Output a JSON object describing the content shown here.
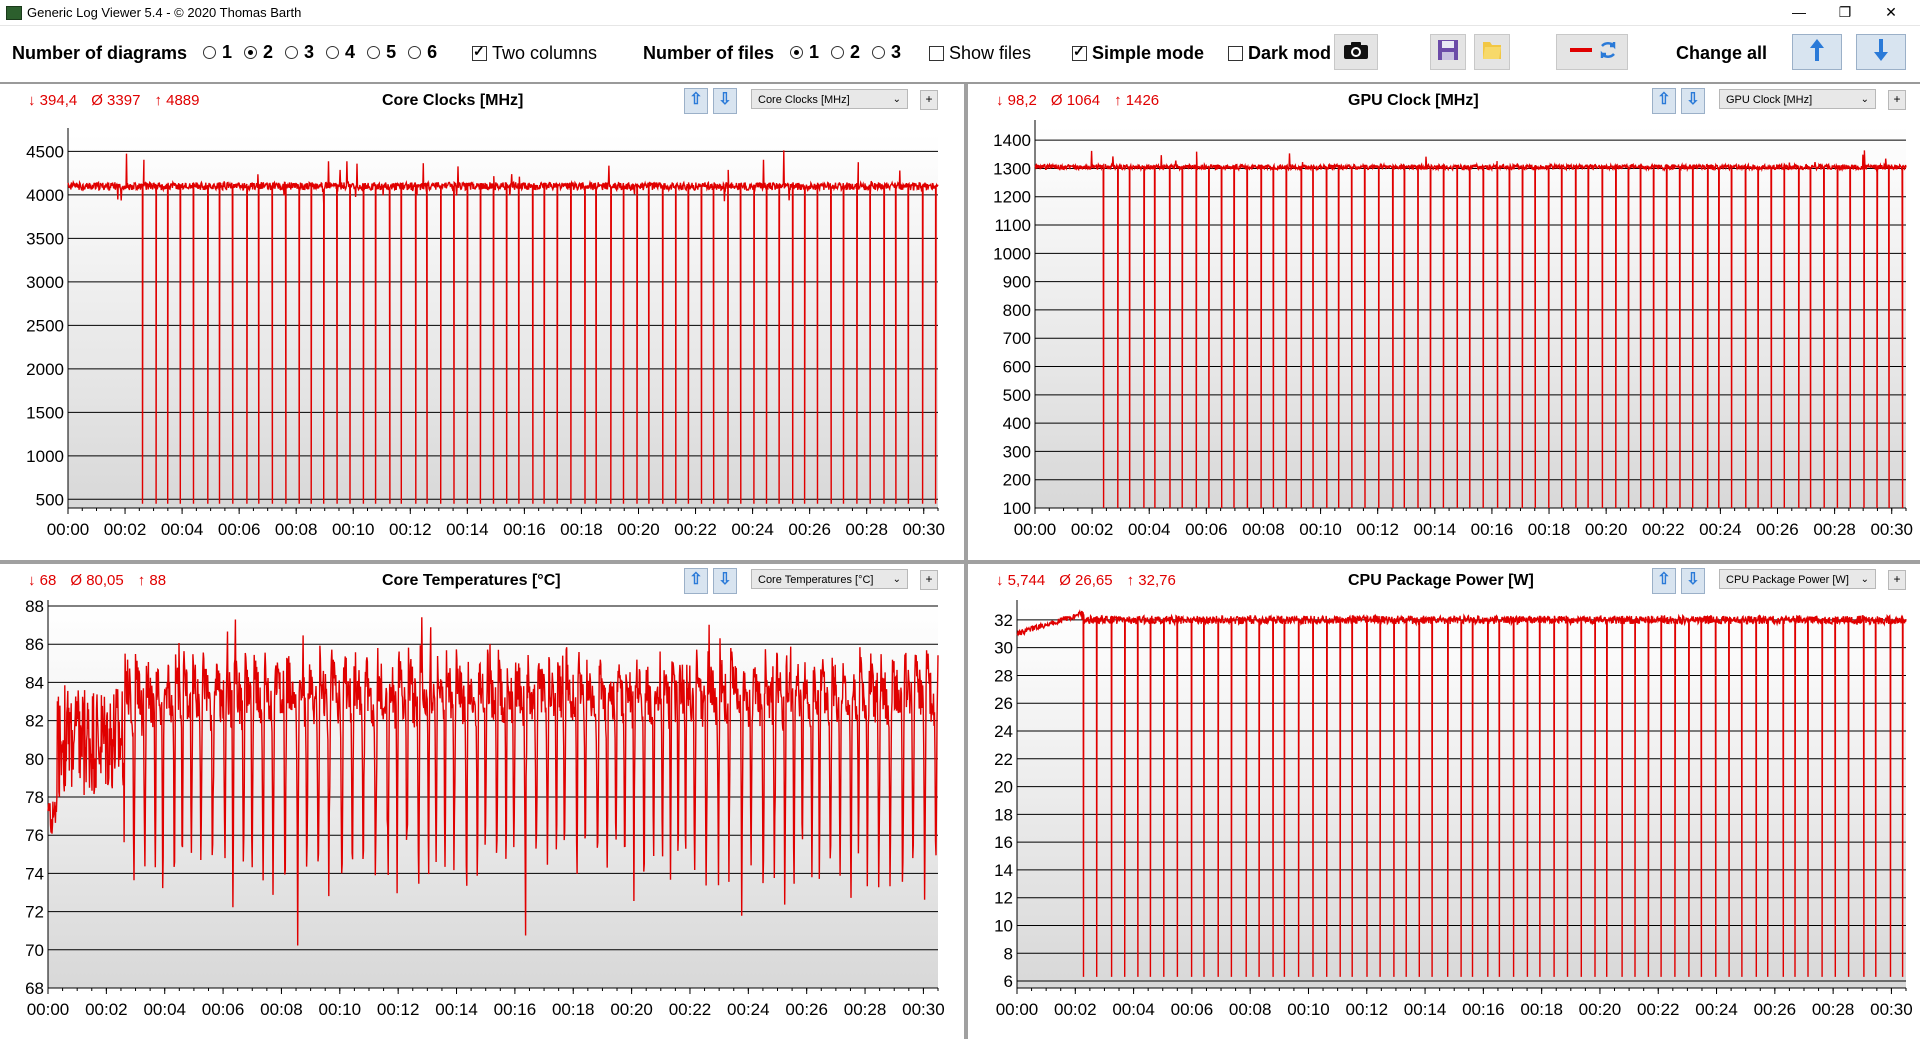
{
  "window": {
    "title": "Generic Log Viewer 5.4 - © 2020 Thomas Barth",
    "minimize": "—",
    "maximize": "❐",
    "close": "✕"
  },
  "toolbar": {
    "num_diagrams_label": "Number of diagrams",
    "diagram_options": [
      "1",
      "2",
      "3",
      "4",
      "5",
      "6"
    ],
    "diagram_selected": "2",
    "two_columns_label": "Two columns",
    "two_columns_checked": true,
    "num_files_label": "Number of files",
    "file_options": [
      "1",
      "2",
      "3"
    ],
    "file_selected": "1",
    "show_files_label": "Show files",
    "show_files_checked": false,
    "simple_mode_label": "Simple mode",
    "simple_mode_checked": true,
    "dark_mode_label": "Dark mod",
    "dark_mode_checked": false,
    "change_all_label": "Change all",
    "icons": [
      "camera-icon",
      "save-icon",
      "folder-icon",
      "swap-color-icon",
      "arrow-up-icon",
      "arrow-down-icon"
    ]
  },
  "accent_color": "#e00000",
  "panels": [
    {
      "stats": {
        "min": "↓ 394,4",
        "avg": "Ø 3397",
        "max": "↑ 4889"
      },
      "title": "Core Clocks [MHz]",
      "dropdown": "Core Clocks [MHz]",
      "plus": "+"
    },
    {
      "stats": {
        "min": "↓ 98,2",
        "avg": "Ø 1064",
        "max": "↑ 1426"
      },
      "title": "GPU Clock [MHz]",
      "dropdown": "GPU Clock [MHz]",
      "plus": "+"
    },
    {
      "stats": {
        "min": "↓ 68",
        "avg": "Ø 80,05",
        "max": "↑ 88"
      },
      "title": "Core Temperatures [°C]",
      "dropdown": "Core Temperatures [°C]",
      "plus": "+"
    },
    {
      "stats": {
        "min": "↓ 5,744",
        "avg": "Ø 26,65",
        "max": "↑ 32,76"
      },
      "title": "CPU Package Power [W]",
      "dropdown": "CPU Package Power [W]",
      "plus": "+"
    }
  ],
  "chart_data": [
    {
      "type": "line",
      "title": "Core Clocks [MHz]",
      "series": [
        {
          "values_summary": {
            "baseline": 4100,
            "dip": 450,
            "dips_count": 62,
            "dip_start": 2.6
          }
        }
      ],
      "xlim": [
        0,
        30.5
      ],
      "xticks": [
        "00:00",
        "00:02",
        "00:04",
        "00:06",
        "00:08",
        "00:10",
        "00:12",
        "00:14",
        "00:16",
        "00:18",
        "00:20",
        "00:22",
        "00:24",
        "00:26",
        "00:28",
        "00:30"
      ],
      "ylim": [
        400,
        4700
      ],
      "yticks": [
        500,
        1000,
        1500,
        2000,
        2500,
        3000,
        3500,
        4000,
        4500
      ],
      "grid": true
    },
    {
      "type": "line",
      "title": "GPU Clock [MHz]",
      "series": [
        {
          "values_summary": {
            "baseline": 1305,
            "dip": 100,
            "dips_count": 62,
            "dip_start": 2.4
          }
        }
      ],
      "xlim": [
        0,
        30.5
      ],
      "xticks": [
        "00:00",
        "00:02",
        "00:04",
        "00:06",
        "00:08",
        "00:10",
        "00:12",
        "00:14",
        "00:16",
        "00:18",
        "00:20",
        "00:22",
        "00:24",
        "00:26",
        "00:28",
        "00:30"
      ],
      "ylim": [
        100,
        1450
      ],
      "yticks": [
        100,
        200,
        300,
        400,
        500,
        600,
        700,
        800,
        900,
        1000,
        1100,
        1200,
        1300,
        1400
      ],
      "grid": true
    },
    {
      "type": "line",
      "title": "Core Temperatures [°C]",
      "series": [
        {
          "values_summary": {
            "high": 84,
            "low": 72,
            "min": 68,
            "max": 88
          }
        }
      ],
      "xlim": [
        0,
        30.5
      ],
      "xticks": [
        "00:00",
        "00:02",
        "00:04",
        "00:06",
        "00:08",
        "00:10",
        "00:12",
        "00:14",
        "00:16",
        "00:18",
        "00:20",
        "00:22",
        "00:24",
        "00:26",
        "00:28",
        "00:30"
      ],
      "ylim": [
        68,
        88
      ],
      "yticks": [
        68,
        70,
        72,
        74,
        76,
        78,
        80,
        82,
        84,
        86,
        88
      ],
      "grid": true
    },
    {
      "type": "line",
      "title": "CPU Package Power [W]",
      "series": [
        {
          "values_summary": {
            "baseline": 32,
            "dip": 6.3,
            "dips_count": 62,
            "dip_start": 2.3
          }
        }
      ],
      "xlim": [
        0,
        30.5
      ],
      "xticks": [
        "00:00",
        "00:02",
        "00:04",
        "00:06",
        "00:08",
        "00:10",
        "00:12",
        "00:14",
        "00:16",
        "00:18",
        "00:20",
        "00:22",
        "00:24",
        "00:26",
        "00:28",
        "00:30"
      ],
      "ylim": [
        5.5,
        33
      ],
      "yticks": [
        6,
        8,
        10,
        12,
        14,
        16,
        18,
        20,
        22,
        24,
        26,
        28,
        30,
        32
      ],
      "grid": true
    }
  ]
}
